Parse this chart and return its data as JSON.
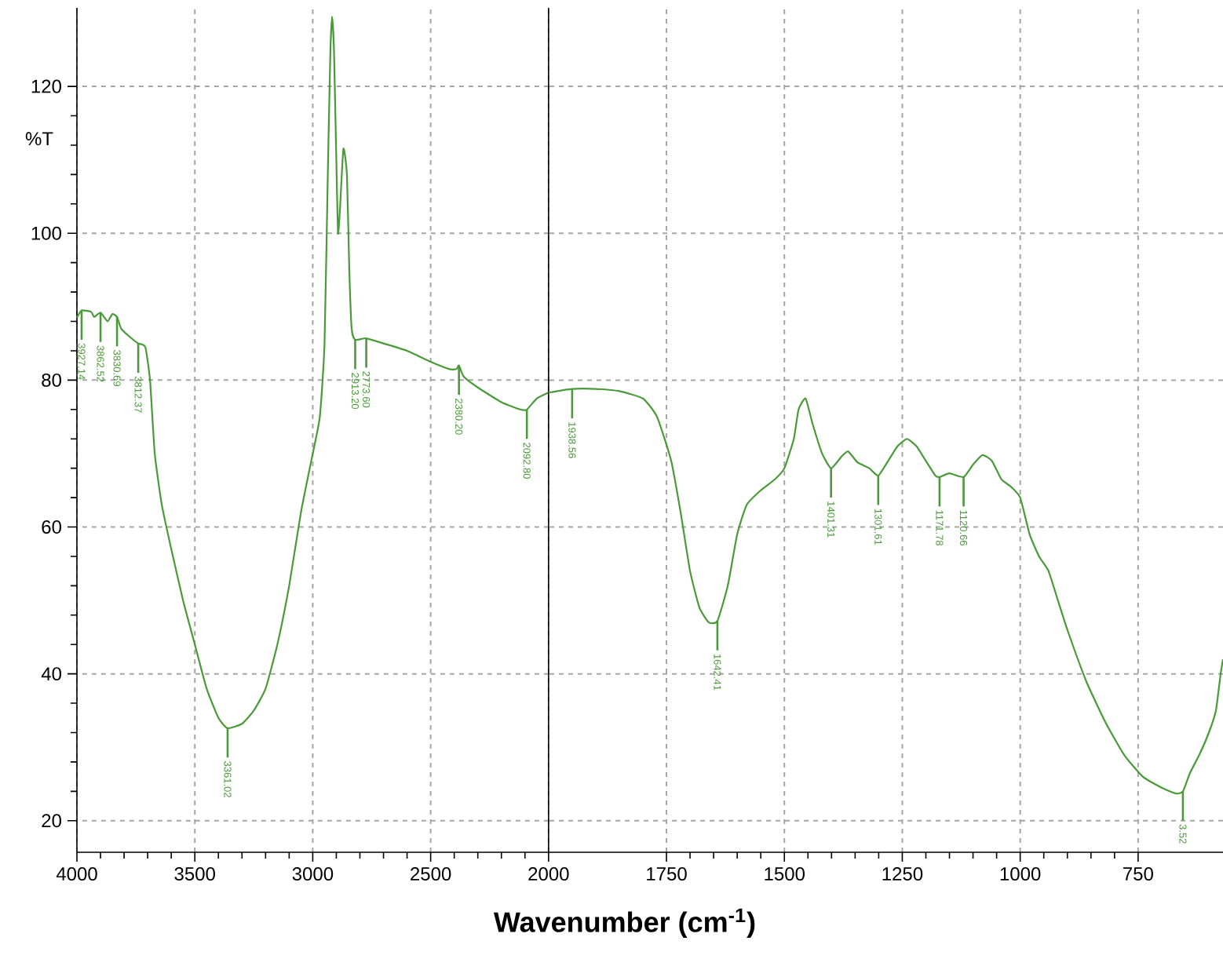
{
  "chart_data": [
    {
      "type": "line",
      "ylabel": "%T",
      "xlim": [
        4000,
        2000
      ],
      "xticks": [
        4000,
        3500,
        3000,
        2500,
        2000
      ],
      "ylim": [
        15.7,
        130.7
      ],
      "yticks": [
        20,
        40,
        60,
        80,
        100,
        120
      ],
      "grid": true,
      "series": [
        {
          "color": "#4a9a3a",
          "x": [
            4000,
            3980,
            3940,
            3927,
            3900,
            3870,
            3850,
            3830,
            3812,
            3780,
            3740,
            3710,
            3690,
            3670,
            3640,
            3600,
            3550,
            3500,
            3450,
            3400,
            3361,
            3300,
            3250,
            3200,
            3150,
            3100,
            3050,
            3000,
            2970,
            2950,
            2935,
            2925,
            2918,
            2910,
            2900,
            2893,
            2885,
            2870,
            2855,
            2845,
            2835,
            2820,
            2773,
            2700,
            2600,
            2500,
            2420,
            2390,
            2380,
            2360,
            2300,
            2200,
            2120,
            2092,
            2050,
            2000
          ],
          "values": [
            88.5,
            89.5,
            89.3,
            88.6,
            89.2,
            88.0,
            89,
            88.6,
            87,
            86,
            85,
            84.5,
            80,
            70,
            63,
            57,
            50,
            44,
            38,
            34,
            32.6,
            33.2,
            35,
            38,
            44,
            52,
            62,
            70,
            75,
            85,
            110,
            125,
            129.5,
            125,
            110,
            100,
            103,
            111.5,
            108,
            95,
            87,
            85.5,
            85.7,
            85,
            84,
            82.5,
            81.5,
            81.5,
            82,
            80.5,
            79,
            77,
            76,
            76,
            77.5,
            78.3
          ]
        }
      ],
      "annotations": [
        {
          "text": "3927.14",
          "x": 3980,
          "y": 89.5
        },
        {
          "text": "3862.52",
          "x": 3900,
          "y": 89.2
        },
        {
          "text": "3830.69",
          "x": 3830,
          "y": 88.6
        },
        {
          "text": "3812.37",
          "x": 3740,
          "y": 85
        },
        {
          "text": "3361.02",
          "x": 3361,
          "y": 32.6
        },
        {
          "text": "2913.20",
          "x": 2820,
          "y": 85.5
        },
        {
          "text": "2773.60",
          "x": 2773,
          "y": 85.7
        },
        {
          "text": "2380.20",
          "x": 2380,
          "y": 82
        },
        {
          "text": "2092.80",
          "x": 2092,
          "y": 76
        }
      ]
    },
    {
      "type": "line",
      "xlabel": "**Wavenumber (cm$^{-1}$)**",
      "tick_labels": "x",
      "xlim": [
        2000,
        570
      ],
      "xticks": [
        1750,
        1500,
        1250,
        1000,
        750
      ],
      "ylim": [
        15.7,
        130.7
      ],
      "yticks": [
        20,
        40,
        60,
        80,
        100,
        120
      ],
      "grid": true,
      "series": [
        {
          "color": "#4a9a3a",
          "x": [
            2000,
            1950,
            1900,
            1850,
            1800,
            1770,
            1740,
            1720,
            1700,
            1680,
            1660,
            1642,
            1620,
            1600,
            1580,
            1550,
            1520,
            1500,
            1480,
            1470,
            1455,
            1440,
            1420,
            1401,
            1380,
            1365,
            1345,
            1320,
            1301,
            1280,
            1260,
            1240,
            1220,
            1200,
            1180,
            1171,
            1150,
            1120,
            1100,
            1080,
            1060,
            1040,
            1020,
            1000,
            980,
            960,
            940,
            920,
            900,
            860,
            820,
            780,
            740,
            700,
            670,
            655,
            640,
            620,
            600,
            585,
            575,
            570
          ],
          "values": [
            78.3,
            78.8,
            78.8,
            78.5,
            77.5,
            75,
            69,
            62,
            54,
            49,
            47,
            47.2,
            52,
            59,
            63,
            65,
            66.5,
            68,
            72,
            76,
            77.5,
            74,
            70,
            68,
            69.5,
            70.3,
            68.8,
            68,
            67,
            69,
            71,
            72,
            71,
            69,
            67,
            66.8,
            67.3,
            66.8,
            68.5,
            69.8,
            69,
            66.5,
            65.5,
            64,
            59,
            56,
            54,
            50,
            46,
            39,
            33.5,
            29,
            26,
            24.5,
            23.7,
            24,
            26.5,
            29,
            32,
            35,
            40,
            42
          ]
        }
      ],
      "annotations": [
        {
          "text": "1938.56",
          "x": 1950,
          "y": 78.8
        },
        {
          "text": "1642.41",
          "x": 1642,
          "y": 47.2
        },
        {
          "text": "1401.31",
          "x": 1401,
          "y": 68
        },
        {
          "text": "1301.61",
          "x": 1301,
          "y": 67
        },
        {
          "text": "1171.78",
          "x": 1171,
          "y": 66.8
        },
        {
          "text": "1120.66",
          "x": 1120,
          "y": 66.8
        },
        {
          "text": "3.52",
          "x": 655,
          "y": 24
        }
      ]
    }
  ]
}
